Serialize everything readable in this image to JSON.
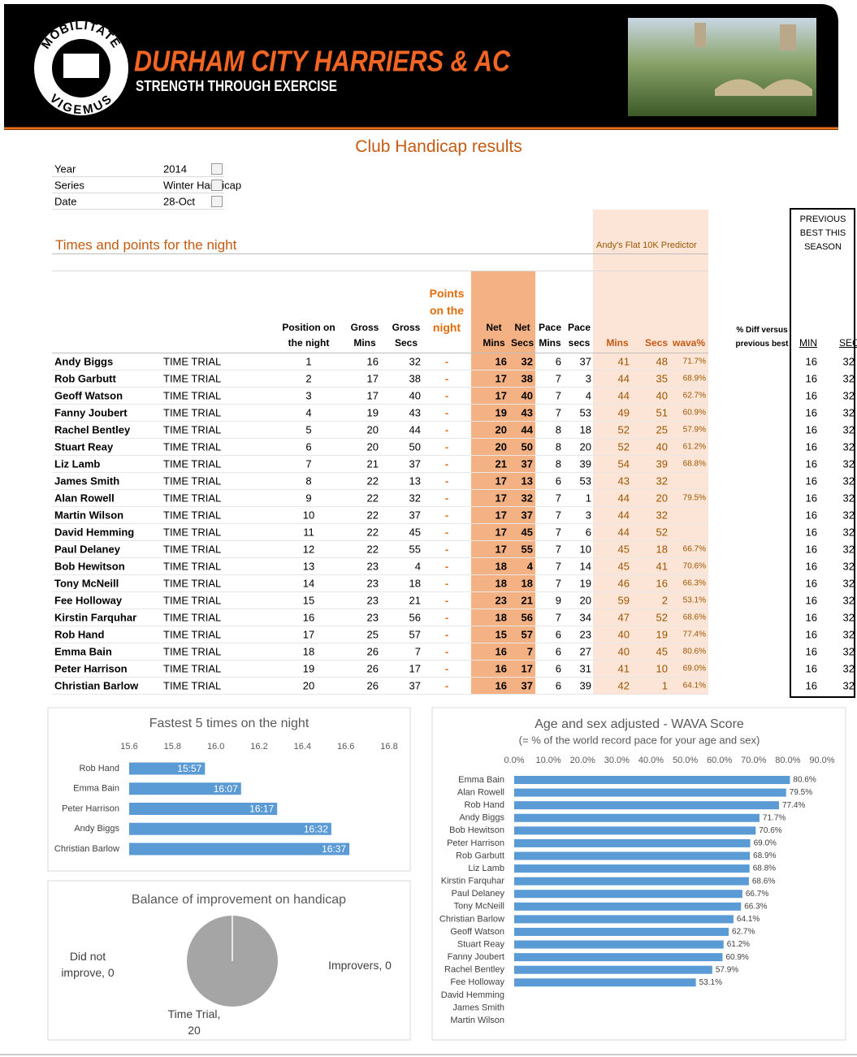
{
  "header": {
    "motto_top": "MOBILITATE",
    "motto_bottom": "VIGEMUS",
    "club": "DURHAM CITY HARRIERS & AC",
    "tagline": "STRENGTH THROUGH EXERCISE"
  },
  "title": "Club Handicap results",
  "filters": [
    [
      "Year",
      "2014"
    ],
    [
      "Series",
      "Winter Handicap"
    ],
    [
      "Date",
      "28-Oct"
    ]
  ],
  "table": {
    "section": "Times and points for the night",
    "predictor": "Andy's Flat 10K Predictor",
    "previous_best": "PREVIOUS BEST THIS SEASON",
    "columns": [
      "Position on the night",
      "Gross Mins",
      "Gross Secs",
      "Points on the night",
      "Net Mins",
      "Net Secs",
      "Pace Mins",
      "Pace secs",
      "Mins",
      "Secs",
      "wava%",
      "% Diff versus previous best",
      "MIN",
      "SEC"
    ],
    "rows": [
      [
        "Andy Biggs",
        "TIME TRIAL",
        1,
        16,
        32,
        "-",
        16,
        32,
        6,
        37,
        41,
        48,
        "71.7%",
        16,
        32
      ],
      [
        "Rob Garbutt",
        "TIME TRIAL",
        2,
        17,
        38,
        "-",
        17,
        38,
        7,
        3,
        44,
        35,
        "68.9%",
        16,
        32
      ],
      [
        "Geoff Watson",
        "TIME TRIAL",
        3,
        17,
        40,
        "-",
        17,
        40,
        7,
        4,
        44,
        40,
        "62.7%",
        16,
        32
      ],
      [
        "Fanny Joubert",
        "TIME TRIAL",
        4,
        19,
        43,
        "-",
        19,
        43,
        7,
        53,
        49,
        51,
        "60.9%",
        16,
        32
      ],
      [
        "Rachel Bentley",
        "TIME TRIAL",
        5,
        20,
        44,
        "-",
        20,
        44,
        8,
        18,
        52,
        25,
        "57.9%",
        16,
        32
      ],
      [
        "Stuart Reay",
        "TIME TRIAL",
        6,
        20,
        50,
        "-",
        20,
        50,
        8,
        20,
        52,
        40,
        "61.2%",
        16,
        32
      ],
      [
        "Liz Lamb",
        "TIME TRIAL",
        7,
        21,
        37,
        "-",
        21,
        37,
        8,
        39,
        54,
        39,
        "68.8%",
        16,
        32
      ],
      [
        "James Smith",
        "TIME TRIAL",
        8,
        22,
        13,
        "-",
        17,
        13,
        6,
        53,
        43,
        32,
        null,
        16,
        32
      ],
      [
        "Alan Rowell",
        "TIME TRIAL",
        9,
        22,
        32,
        "-",
        17,
        32,
        7,
        1,
        44,
        20,
        "79.5%",
        16,
        32
      ],
      [
        "Martin Wilson",
        "TIME TRIAL",
        10,
        22,
        37,
        "-",
        17,
        37,
        7,
        3,
        44,
        32,
        null,
        16,
        32
      ],
      [
        "David Hemming",
        "TIME TRIAL",
        11,
        22,
        45,
        "-",
        17,
        45,
        7,
        6,
        44,
        52,
        null,
        16,
        32
      ],
      [
        "Paul Delaney",
        "TIME TRIAL",
        12,
        22,
        55,
        "-",
        17,
        55,
        7,
        10,
        45,
        18,
        "66.7%",
        16,
        32
      ],
      [
        "Bob Hewitson",
        "TIME TRIAL",
        13,
        23,
        4,
        "-",
        18,
        4,
        7,
        14,
        45,
        41,
        "70.6%",
        16,
        32
      ],
      [
        "Tony McNeill",
        "TIME TRIAL",
        14,
        23,
        18,
        "-",
        18,
        18,
        7,
        19,
        46,
        16,
        "66.3%",
        16,
        32
      ],
      [
        "Fee Holloway",
        "TIME TRIAL",
        15,
        23,
        21,
        "-",
        23,
        21,
        9,
        20,
        59,
        2,
        "53.1%",
        16,
        32
      ],
      [
        "Kirstin Farquhar",
        "TIME TRIAL",
        16,
        23,
        56,
        "-",
        18,
        56,
        7,
        34,
        47,
        52,
        "68.6%",
        16,
        32
      ],
      [
        "Rob Hand",
        "TIME TRIAL",
        17,
        25,
        57,
        "-",
        15,
        57,
        6,
        23,
        40,
        19,
        "77.4%",
        16,
        32
      ],
      [
        "Emma Bain",
        "TIME TRIAL",
        18,
        26,
        7,
        "-",
        16,
        7,
        6,
        27,
        40,
        45,
        "80.6%",
        16,
        32
      ],
      [
        "Peter Harrison",
        "TIME TRIAL",
        19,
        26,
        17,
        "-",
        16,
        17,
        6,
        31,
        41,
        10,
        "69.0%",
        16,
        32
      ],
      [
        "Christian Barlow",
        "TIME TRIAL",
        20,
        26,
        37,
        "-",
        16,
        37,
        6,
        39,
        42,
        1,
        "64.1%",
        16,
        32
      ]
    ]
  },
  "chart_data": [
    {
      "type": "bar",
      "orientation": "horizontal",
      "title": "Fastest 5 times on the night",
      "color": "#5b9bd5",
      "categories": [
        "Rob Hand",
        "Emma Bain",
        "Peter Harrison",
        "Andy Biggs",
        "Christian Barlow"
      ],
      "values": [
        15.95,
        16.1167,
        16.2833,
        16.5333,
        16.6167
      ],
      "value_labels": [
        "15:57",
        "16:07",
        "16:17",
        "16:32",
        "16:37"
      ],
      "xlim": [
        15.6,
        16.8
      ],
      "xticks": [
        15.6,
        15.8,
        {
          "value": 16,
          "label": "16.0"
        },
        16.2,
        16.4,
        16.6,
        16.8
      ]
    },
    {
      "type": "bar",
      "orientation": "horizontal",
      "title": "Age and sex adjusted - WAVA Score",
      "subtitle": "(= % of the world record pace for your age and sex)",
      "color": "#5b9bd5",
      "categories": [
        "Emma Bain",
        "Alan Rowell",
        "Rob Hand",
        "Andy Biggs",
        "Bob Hewitson",
        "Peter Harrison",
        "Rob Garbutt",
        "Liz Lamb",
        "Kirstin Farquhar",
        "Paul Delaney",
        "Tony McNeill",
        "Christian Barlow",
        "Geoff Watson",
        "Stuart Reay",
        "Fanny Joubert",
        "Rachel Bentley",
        "Fee Holloway",
        "David Hemming",
        "James Smith",
        "Martin Wilson"
      ],
      "values": [
        80.6,
        79.5,
        77.4,
        71.7,
        70.6,
        69.0,
        68.9,
        68.8,
        68.6,
        66.7,
        66.3,
        64.1,
        62.7,
        61.2,
        60.9,
        57.9,
        53.1,
        null,
        null,
        null
      ],
      "value_labels": [
        "80.6%",
        "79.5%",
        "77.4%",
        "71.7%",
        "70.6%",
        "69.0%",
        "68.9%",
        "68.8%",
        "68.6%",
        "66.7%",
        "66.3%",
        "64.1%",
        "62.7%",
        "61.2%",
        "60.9%",
        "57.9%",
        "53.1%",
        null,
        null,
        null
      ],
      "xlim": [
        0,
        90
      ],
      "xticks": [
        {
          "value": 0,
          "label": "0.0%"
        },
        {
          "value": 10,
          "label": "10.0%"
        },
        {
          "value": 20,
          "label": "20.0%"
        },
        {
          "value": 30,
          "label": "30.0%"
        },
        {
          "value": 40,
          "label": "40.0%"
        },
        {
          "value": 50,
          "label": "50.0%"
        },
        {
          "value": 60,
          "label": "60.0%"
        },
        {
          "value": 70,
          "label": "70.0%"
        },
        {
          "value": 80,
          "label": "80.0%"
        },
        {
          "value": 90,
          "label": "90.0%"
        }
      ]
    },
    {
      "type": "pie",
      "title": "Balance of improvement on handicap",
      "color": "#a5a5a5",
      "values": [
        0,
        0,
        20
      ],
      "value_labels": [
        "Did not improve, 0",
        "Improvers, 0",
        "Time Trial, 20"
      ]
    }
  ]
}
